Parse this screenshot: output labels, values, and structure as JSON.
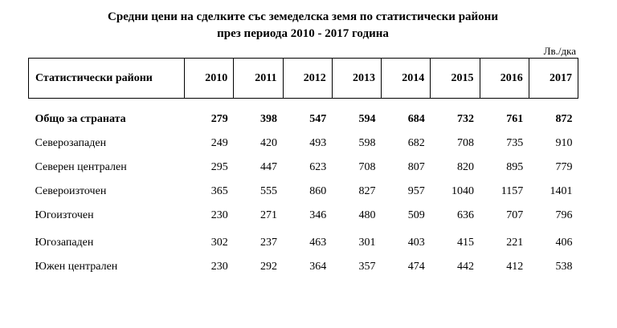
{
  "title": {
    "line1": "Средни цени на сделките със земеделска земя по статистически райони",
    "line2": "през периода 2010 - 2017 година"
  },
  "unit_label": "Лв./дка",
  "table": {
    "header": {
      "region_column": "Статистически райони",
      "years": [
        "2010",
        "2011",
        "2012",
        "2013",
        "2014",
        "2015",
        "2016",
        "2017"
      ]
    },
    "total_row": {
      "label": "Общо за страната",
      "values": [
        279,
        398,
        547,
        594,
        684,
        732,
        761,
        872
      ]
    },
    "rows": [
      {
        "label": "Северозападен",
        "values": [
          249,
          420,
          493,
          598,
          682,
          708,
          735,
          910
        ]
      },
      {
        "label": "Северен централен",
        "values": [
          295,
          447,
          623,
          708,
          807,
          820,
          895,
          779
        ]
      },
      {
        "label": "Североизточен",
        "values": [
          365,
          555,
          860,
          827,
          957,
          1040,
          1157,
          1401
        ]
      },
      {
        "label": "Югоизточен",
        "values": [
          230,
          271,
          346,
          480,
          509,
          636,
          707,
          796
        ]
      },
      {
        "label": "Югозападен",
        "values": [
          302,
          237,
          463,
          301,
          403,
          415,
          221,
          406
        ]
      },
      {
        "label": "Южен централен",
        "values": [
          230,
          292,
          364,
          357,
          474,
          442,
          412,
          538
        ]
      }
    ]
  },
  "colors": {
    "text": "#000000",
    "background": "#ffffff",
    "border": "#000000"
  }
}
